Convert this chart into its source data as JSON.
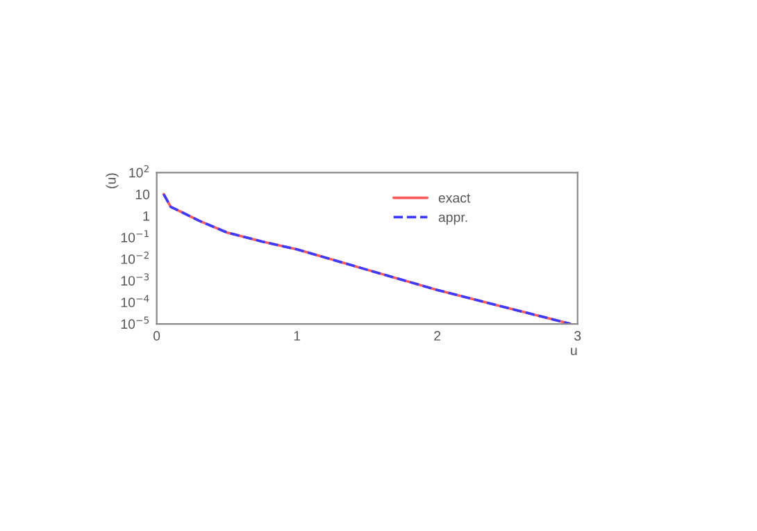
{
  "chart_data": {
    "type": "line",
    "xlabel": "u",
    "ylabel": "(u)",
    "log": "y",
    "xlim": [
      0,
      3
    ],
    "xticks": [
      0,
      1,
      2,
      3
    ],
    "ylim": [
      1e-05,
      100
    ],
    "yticks": [
      {
        "value": 1e-05,
        "label": "10$^{−5}$"
      },
      {
        "value": 0.0001,
        "label": "10$^{−4}$"
      },
      {
        "value": 0.001,
        "label": "10$^{−3}$"
      },
      {
        "value": 0.01,
        "label": "10$^{−2}$"
      },
      {
        "value": 0.1,
        "label": "10$^{−1}$"
      },
      1,
      10,
      {
        "value": 100,
        "label": "10$^{2}$"
      }
    ],
    "x": [
      0.05,
      0.1,
      0.2,
      0.3,
      0.5,
      0.75,
      1,
      1.5,
      2,
      2.5,
      2.95
    ],
    "series": [
      {
        "name": "exact",
        "color": "#ff5a5a",
        "line_style": "solid",
        "values": [
          10,
          2.6,
          1.26,
          0.6,
          0.17,
          0.065,
          0.028,
          0.0032,
          0.00037,
          5.5e-05,
          1e-05
        ]
      },
      {
        "name": "appr.",
        "color": "#3c3cff",
        "line_style": "dashed",
        "values": [
          10,
          2.6,
          1.26,
          0.6,
          0.17,
          0.065,
          0.028,
          0.0032,
          0.00037,
          5.5e-05,
          1e-05
        ]
      }
    ],
    "legend": "top right",
    "grid": false,
    "marker": "none"
  }
}
